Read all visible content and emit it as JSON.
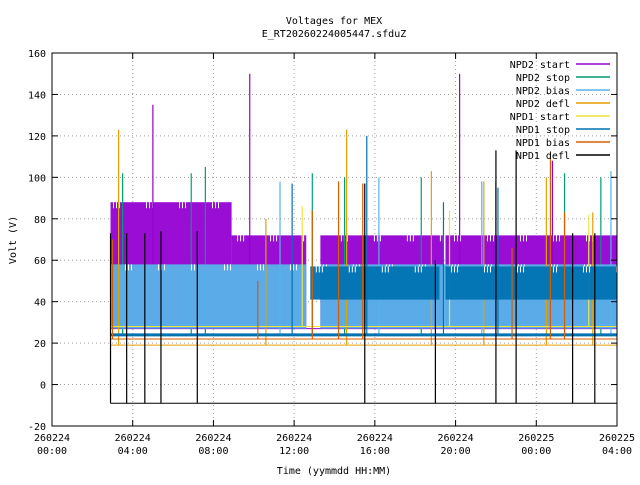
{
  "chart_data": {
    "type": "line",
    "title": "Voltages for MEX",
    "subtitle": "E_RT20260224005447.sfduZ",
    "xlabel": "Time (yymmdd HH:MM)",
    "ylabel": "Volt (V)",
    "ylim": [
      -20,
      160
    ],
    "xlim_hours": [
      0,
      28
    ],
    "grid": true,
    "legend_position": "top-right",
    "y_ticks": [
      "-20",
      "0",
      "20",
      "40",
      "60",
      "80",
      "100",
      "120",
      "140",
      "160"
    ],
    "x_ticks": [
      {
        "date": "260224",
        "time": "00:00"
      },
      {
        "date": "260224",
        "time": "04:00"
      },
      {
        "date": "260224",
        "time": "08:00"
      },
      {
        "date": "260224",
        "time": "12:00"
      },
      {
        "date": "260224",
        "time": "16:00"
      },
      {
        "date": "260224",
        "time": "20:00"
      },
      {
        "date": "260225",
        "time": "00:00"
      },
      {
        "date": "260225",
        "time": "04:00"
      }
    ],
    "series": [
      {
        "name": "NPD2 start",
        "color": "#9400d3",
        "baseline": 27,
        "bands": [
          {
            "from": 2.9,
            "to": 8.9,
            "low": 27,
            "high": 88
          },
          {
            "from": 8.9,
            "to": 12.6,
            "low": 27,
            "high": 72
          },
          {
            "from": 13.3,
            "to": 19.4,
            "low": 27,
            "high": 72
          },
          {
            "from": 19.5,
            "to": 28.0,
            "low": 27,
            "high": 72
          }
        ],
        "spikes": [
          [
            5.0,
            135
          ],
          [
            9.8,
            150
          ],
          [
            20.2,
            150
          ],
          [
            24.8,
            108
          ]
        ]
      },
      {
        "name": "NPD2 stop",
        "color": "#009e73",
        "baseline": 24,
        "spikes": [
          [
            3.5,
            102
          ],
          [
            6.9,
            102
          ],
          [
            7.6,
            105
          ],
          [
            12.9,
            102
          ],
          [
            14.5,
            100
          ],
          [
            18.3,
            100
          ],
          [
            22.0,
            98
          ],
          [
            25.4,
            102
          ],
          [
            27.2,
            100
          ]
        ]
      },
      {
        "name": "NPD2 bias",
        "color": "#56b4e9",
        "baseline": 24,
        "bands": [
          {
            "from": 2.9,
            "to": 12.6,
            "low": 27,
            "high": 58
          },
          {
            "from": 13.3,
            "to": 28.0,
            "low": 27,
            "high": 58
          }
        ],
        "spikes": [
          [
            11.3,
            98
          ],
          [
            16.2,
            100
          ],
          [
            21.3,
            98
          ],
          [
            27.7,
            103
          ]
        ]
      },
      {
        "name": "NPD2 defl",
        "color": "#e69f00",
        "baseline": 19,
        "spikes": [
          [
            3.3,
            123
          ],
          [
            10.6,
            80
          ],
          [
            14.6,
            123
          ],
          [
            18.8,
            103
          ],
          [
            21.4,
            98
          ],
          [
            24.5,
            100
          ],
          [
            26.8,
            83
          ]
        ]
      },
      {
        "name": "NPD1 start",
        "color": "#f0e442",
        "baseline": 28,
        "spikes": [
          [
            12.4,
            86
          ],
          [
            19.7,
            84
          ],
          [
            26.6,
            82
          ]
        ]
      },
      {
        "name": "NPD1 stop",
        "color": "#0072b2",
        "baseline": 24,
        "bands": [
          {
            "from": 12.8,
            "to": 19.2,
            "low": 41,
            "high": 57
          },
          {
            "from": 19.5,
            "to": 28.0,
            "low": 41,
            "high": 57
          }
        ],
        "spikes": [
          [
            11.9,
            97
          ],
          [
            15.6,
            120
          ],
          [
            19.4,
            88
          ],
          [
            22.1,
            95
          ]
        ]
      },
      {
        "name": "NPD1 bias",
        "color": "#d55e00",
        "baseline": 22,
        "spikes": [
          [
            3.0,
            70
          ],
          [
            10.2,
            50
          ],
          [
            12.9,
            84
          ],
          [
            14.2,
            98
          ],
          [
            15.4,
            97
          ],
          [
            22.8,
            66
          ],
          [
            24.7,
            112
          ],
          [
            25.4,
            83
          ]
        ]
      },
      {
        "name": "NPD1 defl",
        "color": "#000000",
        "baseline": -9,
        "spikes": [
          [
            2.9,
            73
          ],
          [
            3.7,
            73
          ],
          [
            4.6,
            73
          ],
          [
            5.4,
            74
          ],
          [
            7.2,
            74
          ],
          [
            15.5,
            97
          ],
          [
            19.0,
            60
          ],
          [
            22.0,
            113
          ],
          [
            23.0,
            113
          ],
          [
            25.8,
            73
          ],
          [
            26.9,
            73
          ]
        ]
      }
    ]
  }
}
